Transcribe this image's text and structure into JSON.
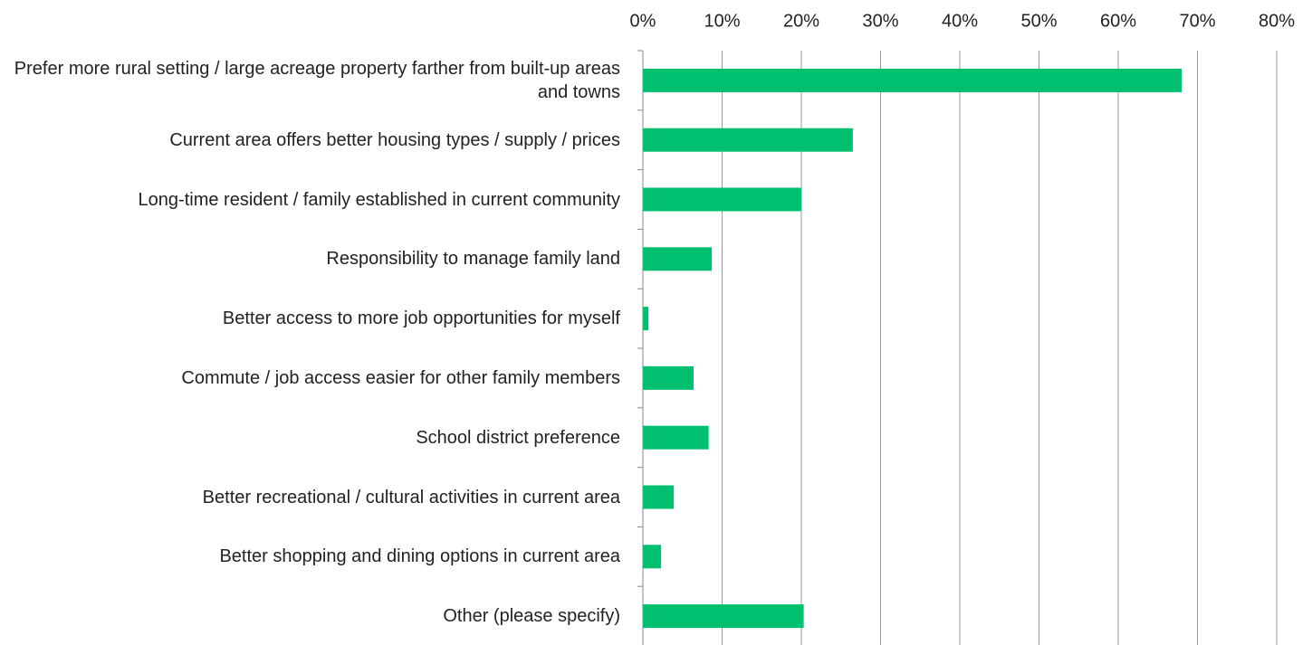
{
  "chart_data": {
    "type": "bar",
    "orientation": "horizontal",
    "categories": [
      "Prefer more rural setting / large acreage property farther from built-up areas and towns",
      "Current area offers better housing types / supply / prices",
      "Long-time resident / family established in current community",
      "Responsibility to manage family land",
      "Better access to more job opportunities for myself",
      "Commute / job access easier for other family members",
      "School district preference",
      "Better recreational / cultural activities in current area",
      "Better shopping and dining options in current area",
      "Other (please specify)"
    ],
    "values": [
      68,
      26.5,
      20,
      8.7,
      0.7,
      6.4,
      8.3,
      3.9,
      2.3,
      20.3
    ],
    "color": "#00c070",
    "xlim": [
      0,
      80
    ],
    "xticks": [
      {
        "value": 0,
        "label": "0%"
      },
      {
        "value": 10,
        "label": "10%"
      },
      {
        "value": 20,
        "label": "20%"
      },
      {
        "value": 30,
        "label": "30%"
      },
      {
        "value": 40,
        "label": "40%"
      },
      {
        "value": 50,
        "label": "50%"
      },
      {
        "value": 60,
        "label": "60%"
      },
      {
        "value": 70,
        "label": "70%"
      },
      {
        "value": 80,
        "label": "80%"
      }
    ],
    "grid": true
  }
}
